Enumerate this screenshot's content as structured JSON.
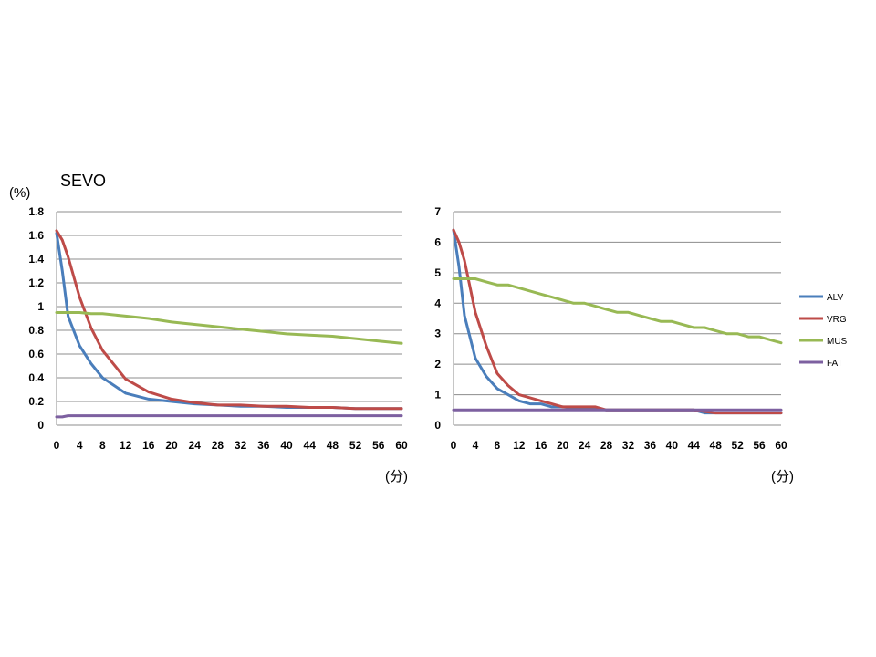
{
  "chart_data": [
    {
      "type": "line",
      "title": "SEVO",
      "ylabel": "(%)",
      "xlabel": "(分)",
      "ylim": [
        0,
        1.8
      ],
      "yticks": [
        "0",
        "0.2",
        "0.4",
        "0.6",
        "0.8",
        "1",
        "1.2",
        "1.4",
        "1.6",
        "1.8"
      ],
      "xticks": [
        "0",
        "4",
        "8",
        "12",
        "16",
        "20",
        "24",
        "28",
        "32",
        "36",
        "40",
        "44",
        "48",
        "52",
        "56",
        "60"
      ],
      "grid": true,
      "legend": "none",
      "x": [
        0,
        1,
        2,
        4,
        6,
        8,
        12,
        16,
        20,
        24,
        28,
        32,
        36,
        40,
        44,
        48,
        52,
        56,
        60
      ],
      "series": [
        {
          "name": "ALV",
          "color": "#4A7EBB",
          "values": [
            1.62,
            1.3,
            0.92,
            0.67,
            0.52,
            0.4,
            0.27,
            0.22,
            0.2,
            0.18,
            0.17,
            0.16,
            0.16,
            0.15,
            0.15,
            0.15,
            0.14,
            0.14,
            0.14
          ]
        },
        {
          "name": "VRG",
          "color": "#BE4B48",
          "values": [
            1.64,
            1.56,
            1.42,
            1.08,
            0.82,
            0.63,
            0.39,
            0.28,
            0.22,
            0.19,
            0.17,
            0.17,
            0.16,
            0.16,
            0.15,
            0.15,
            0.14,
            0.14,
            0.14
          ]
        },
        {
          "name": "MUS",
          "color": "#98B954",
          "values": [
            0.95,
            0.95,
            0.95,
            0.95,
            0.94,
            0.94,
            0.92,
            0.9,
            0.87,
            0.85,
            0.83,
            0.81,
            0.79,
            0.77,
            0.76,
            0.75,
            0.73,
            0.71,
            0.69
          ]
        },
        {
          "name": "FAT",
          "color": "#7D60A0",
          "values": [
            0.07,
            0.07,
            0.08,
            0.08,
            0.08,
            0.08,
            0.08,
            0.08,
            0.08,
            0.08,
            0.08,
            0.08,
            0.08,
            0.08,
            0.08,
            0.08,
            0.08,
            0.08,
            0.08
          ]
        }
      ]
    },
    {
      "type": "line",
      "title": "",
      "ylabel": "",
      "xlabel": "(分)",
      "ylim": [
        0,
        7
      ],
      "yticks": [
        "0",
        "1",
        "2",
        "3",
        "4",
        "5",
        "6",
        "7"
      ],
      "xticks": [
        "0",
        "4",
        "8",
        "12",
        "16",
        "20",
        "24",
        "28",
        "32",
        "36",
        "40",
        "44",
        "48",
        "52",
        "56",
        "60"
      ],
      "grid": true,
      "legend": "right",
      "x": [
        0,
        1,
        2,
        4,
        6,
        8,
        10,
        12,
        14,
        16,
        18,
        20,
        22,
        24,
        26,
        28,
        30,
        32,
        34,
        36,
        38,
        40,
        42,
        44,
        46,
        48,
        50,
        52,
        54,
        56,
        58,
        60
      ],
      "series": [
        {
          "name": "ALV",
          "color": "#4A7EBB",
          "values": [
            6.4,
            5.2,
            3.6,
            2.2,
            1.6,
            1.2,
            1.0,
            0.8,
            0.7,
            0.7,
            0.6,
            0.6,
            0.55,
            0.55,
            0.55,
            0.5,
            0.5,
            0.5,
            0.5,
            0.5,
            0.5,
            0.5,
            0.5,
            0.5,
            0.4,
            0.4,
            0.4,
            0.4,
            0.4,
            0.4,
            0.4,
            0.4
          ]
        },
        {
          "name": "VRG",
          "color": "#BE4B48",
          "values": [
            6.4,
            6.0,
            5.4,
            3.7,
            2.6,
            1.7,
            1.3,
            1.0,
            0.9,
            0.8,
            0.7,
            0.6,
            0.6,
            0.6,
            0.6,
            0.5,
            0.5,
            0.5,
            0.5,
            0.5,
            0.5,
            0.5,
            0.5,
            0.5,
            0.45,
            0.4,
            0.4,
            0.4,
            0.4,
            0.4,
            0.4,
            0.4
          ]
        },
        {
          "name": "MUS",
          "color": "#98B954",
          "values": [
            4.8,
            4.8,
            4.8,
            4.8,
            4.7,
            4.6,
            4.6,
            4.5,
            4.4,
            4.3,
            4.2,
            4.1,
            4.0,
            4.0,
            3.9,
            3.8,
            3.7,
            3.7,
            3.6,
            3.5,
            3.4,
            3.4,
            3.3,
            3.2,
            3.2,
            3.1,
            3.0,
            3.0,
            2.9,
            2.9,
            2.8,
            2.7
          ]
        },
        {
          "name": "FAT",
          "color": "#7D60A0",
          "values": [
            0.5,
            0.5,
            0.5,
            0.5,
            0.5,
            0.5,
            0.5,
            0.5,
            0.5,
            0.5,
            0.5,
            0.5,
            0.5,
            0.5,
            0.5,
            0.5,
            0.5,
            0.5,
            0.5,
            0.5,
            0.5,
            0.5,
            0.5,
            0.5,
            0.5,
            0.5,
            0.5,
            0.5,
            0.5,
            0.5,
            0.5,
            0.5
          ]
        }
      ]
    }
  ]
}
